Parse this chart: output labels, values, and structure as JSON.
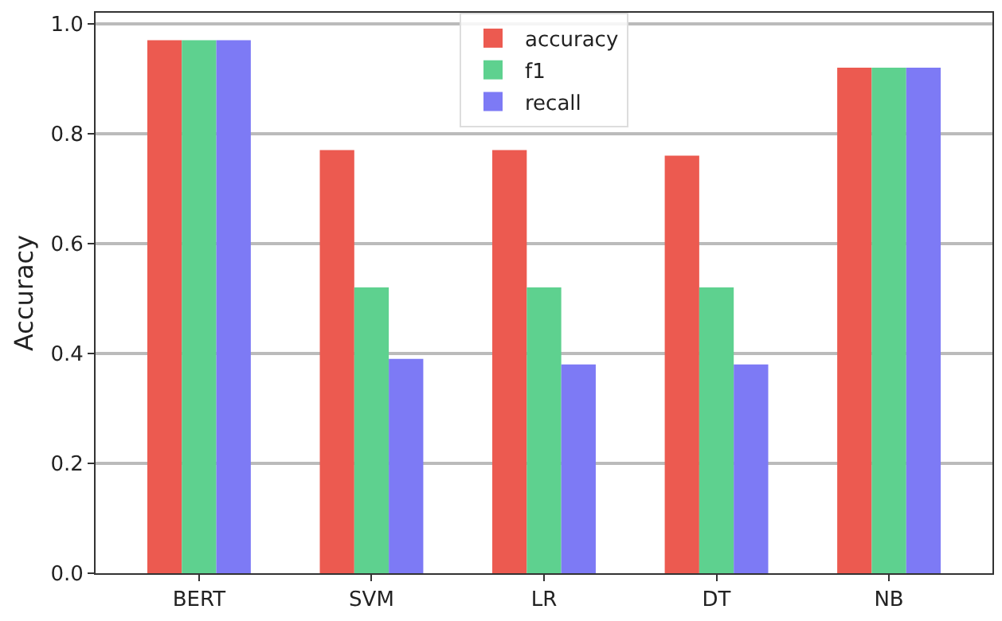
{
  "chart_data": {
    "type": "bar",
    "ylabel": "Accuracy",
    "categories": [
      "BERT",
      "SVM",
      "LR",
      "DT",
      "NB"
    ],
    "series": [
      {
        "name": "accuracy",
        "color": "#ec5a50",
        "values": [
          0.97,
          0.77,
          0.77,
          0.76,
          0.92
        ]
      },
      {
        "name": "f1",
        "color": "#5ed18f",
        "values": [
          0.97,
          0.52,
          0.52,
          0.52,
          0.92
        ]
      },
      {
        "name": "recall",
        "color": "#7d7af5",
        "values": [
          0.97,
          0.39,
          0.38,
          0.38,
          0.92
        ]
      }
    ],
    "ylim": [
      0,
      1.02
    ],
    "yticks": [
      {
        "value": 0,
        "label": "0.0"
      },
      {
        "value": 0.2,
        "label": "0.2"
      },
      {
        "value": 0.4,
        "label": "0.4"
      },
      {
        "value": 0.6,
        "label": "0.6"
      },
      {
        "value": 0.8,
        "label": "0.8"
      },
      {
        "value": 1,
        "label": "1.0"
      }
    ],
    "grid": "y",
    "legend": "top"
  }
}
